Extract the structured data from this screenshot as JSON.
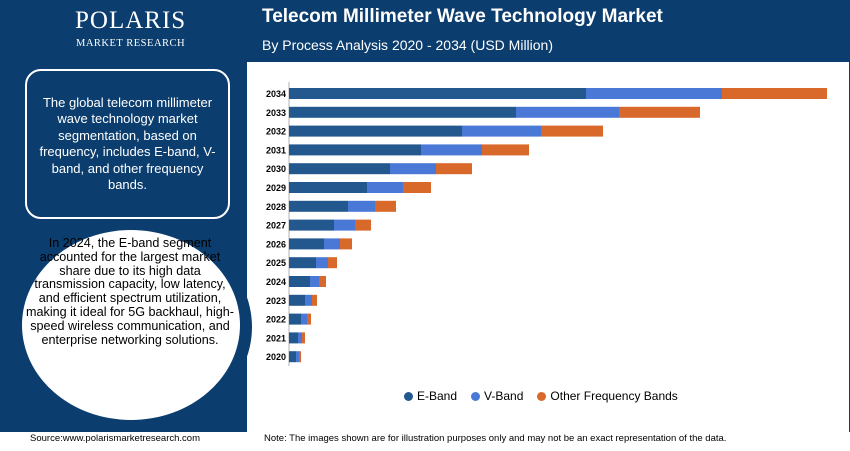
{
  "brand": {
    "name": "POLARIS",
    "tagline": "MARKET RESEARCH"
  },
  "header": {
    "title": "Telecom Millimeter Wave Technology Market",
    "subtitle": "By Process Analysis 2020 - 2034 (USD Million)"
  },
  "sidebar": {
    "summary": "The global telecom millimeter wave technology market segmentation, based on frequency, includes E-band, V-band, and other frequency bands.",
    "highlight": "In 2024, the E-band segment accounted for the largest market share due to its high data transmission capacity, low latency, and efficient spectrum utilization, making it ideal for 5G backhaul, high-speed wireless communication, and enterprise networking solutions."
  },
  "footer": {
    "source": "Source:www.polarismarketresearch.com",
    "note": "Note: The images shown are for illustration purposes only and may not be an exact representation of the data."
  },
  "colors": {
    "eband": "#23588f",
    "vband": "#4a78d6",
    "other": "#d8692a",
    "brand": "#0b3d6e"
  },
  "chart_data": {
    "type": "bar",
    "orientation": "horizontal",
    "stacked": true,
    "categories": [
      "2034",
      "2033",
      "2032",
      "2031",
      "2030",
      "2029",
      "2028",
      "2027",
      "2026",
      "2025",
      "2024",
      "2023",
      "2022",
      "2021",
      "2020"
    ],
    "series": [
      {
        "name": "E-Band",
        "values": [
          297,
          227,
          173,
          132,
          101,
          78,
          59,
          45,
          35,
          27,
          21,
          16,
          12,
          9,
          7
        ]
      },
      {
        "name": "V-Band",
        "values": [
          136,
          103,
          79,
          61,
          46,
          36,
          27,
          21,
          16,
          12,
          9,
          7,
          6,
          4,
          3
        ]
      },
      {
        "name": "Other Frequency Bands",
        "values": [
          105,
          81,
          62,
          47,
          36,
          28,
          21,
          16,
          12,
          9,
          7,
          5,
          4,
          3,
          2
        ]
      }
    ],
    "xlim": [
      0,
      540
    ],
    "grid": false,
    "legend": "bottom"
  }
}
